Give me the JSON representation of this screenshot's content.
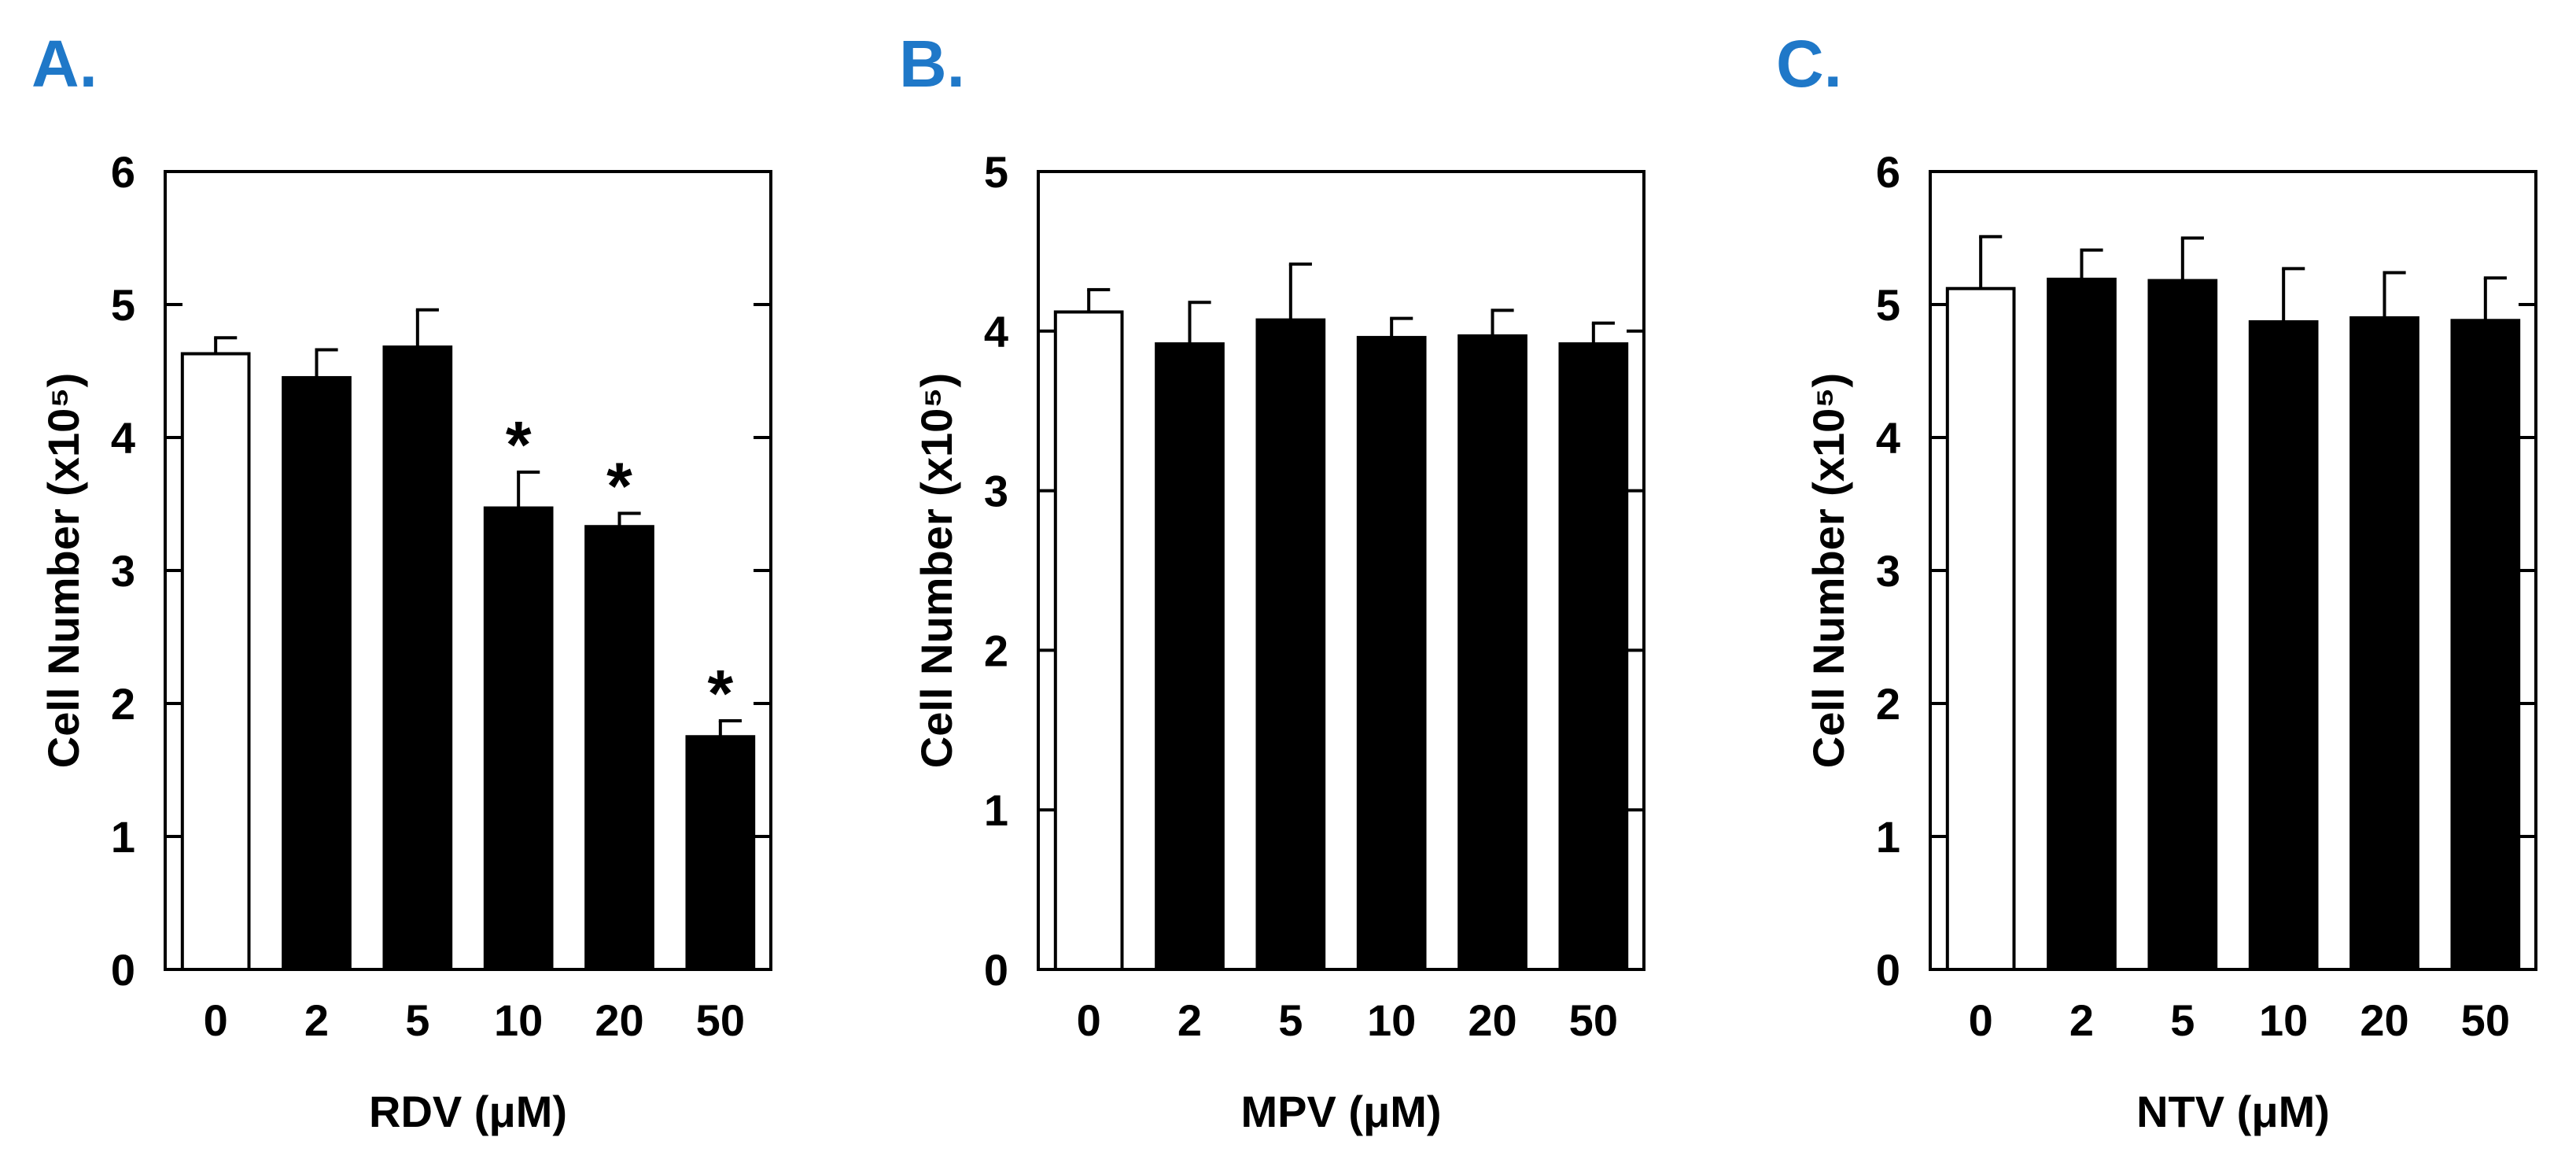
{
  "colors": {
    "panel_letter": "#1f78c8",
    "control_bar": "#ffffff",
    "treated_bar": "#000000",
    "axis": "#000000"
  },
  "chart_data": [
    {
      "type": "bar",
      "panel_label": "A.",
      "categories": [
        "0",
        "2",
        "5",
        "10",
        "20",
        "50"
      ],
      "values": [
        4.63,
        4.45,
        4.68,
        3.47,
        3.33,
        1.75
      ],
      "errors": [
        0.12,
        0.21,
        0.28,
        0.27,
        0.1,
        0.12
      ],
      "significant": [
        false,
        false,
        false,
        true,
        true,
        true
      ],
      "significance_marker": "*",
      "bar_fill": [
        "control",
        "treated",
        "treated",
        "treated",
        "treated",
        "treated"
      ],
      "xlabel": "RDV (μM)",
      "ylabel": "Cell Number (x10⁵)",
      "ylim": [
        0,
        6
      ],
      "yticks": [
        "0",
        "1",
        "2",
        "3",
        "4",
        "5",
        "6"
      ],
      "grid": false
    },
    {
      "type": "bar",
      "panel_label": "B.",
      "categories": [
        "0",
        "2",
        "5",
        "10",
        "20",
        "50"
      ],
      "values": [
        4.12,
        3.92,
        4.07,
        3.96,
        3.97,
        3.92
      ],
      "errors": [
        0.14,
        0.26,
        0.35,
        0.12,
        0.16,
        0.13
      ],
      "significant": [
        false,
        false,
        false,
        false,
        false,
        false
      ],
      "significance_marker": "*",
      "bar_fill": [
        "control",
        "treated",
        "treated",
        "treated",
        "treated",
        "treated"
      ],
      "xlabel": "MPV (μM)",
      "ylabel": "Cell Number (x10⁵)",
      "ylim": [
        0,
        5
      ],
      "yticks": [
        "0",
        "1",
        "2",
        "3",
        "4",
        "5"
      ],
      "grid": false
    },
    {
      "type": "bar",
      "panel_label": "C.",
      "categories": [
        "0",
        "2",
        "5",
        "10",
        "20",
        "50"
      ],
      "values": [
        5.12,
        5.19,
        5.18,
        4.87,
        4.9,
        4.88
      ],
      "errors": [
        0.39,
        0.22,
        0.32,
        0.4,
        0.34,
        0.32
      ],
      "significant": [
        false,
        false,
        false,
        false,
        false,
        false
      ],
      "significance_marker": "*",
      "bar_fill": [
        "control",
        "treated",
        "treated",
        "treated",
        "treated",
        "treated"
      ],
      "xlabel": "NTV (μM)",
      "ylabel": "Cell Number (x10⁵)",
      "ylim": [
        0,
        6
      ],
      "yticks": [
        "0",
        "1",
        "2",
        "3",
        "4",
        "5",
        "6"
      ],
      "grid": false
    }
  ]
}
